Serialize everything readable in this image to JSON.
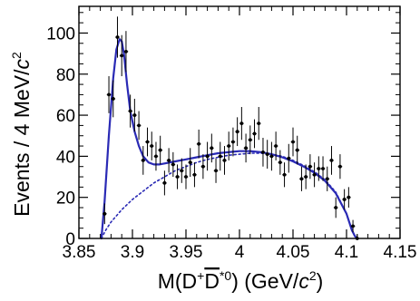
{
  "chart_data": {
    "type": "scatter",
    "xlabel": {
      "prefix": "M(D",
      "sup1": "+",
      "mid": "D",
      "sup2": "*0",
      "suffix": ") (GeV/",
      "unit_c": "c",
      "unit_pow": "2",
      "close": ")"
    },
    "ylabel": {
      "text": "Events / 4 MeV/",
      "unit_c": "c",
      "unit_pow": "2"
    },
    "xlim": [
      3.85,
      4.15
    ],
    "ylim": [
      0,
      113
    ],
    "x_ticks": [
      3.85,
      3.9,
      3.95,
      4.0,
      4.05,
      4.1,
      4.15
    ],
    "x_tick_labels": [
      "3.85",
      "3.9",
      "3.95",
      "4",
      "4.05",
      "4.1",
      "4.15"
    ],
    "y_ticks": [
      0,
      20,
      40,
      60,
      80,
      100
    ],
    "y_tick_labels": [
      "0",
      "20",
      "40",
      "60",
      "80",
      "100"
    ],
    "grid": false,
    "legend": "none",
    "colors": {
      "fit": "#2a2ab5",
      "points": "#000000"
    },
    "series": [
      {
        "kind": "data-points-with-errors",
        "x": [
          3.874,
          3.878,
          3.882,
          3.886,
          3.89,
          3.894,
          3.898,
          3.902,
          3.906,
          3.91,
          3.914,
          3.918,
          3.922,
          3.926,
          3.93,
          3.934,
          3.938,
          3.942,
          3.946,
          3.95,
          3.954,
          3.958,
          3.962,
          3.966,
          3.97,
          3.974,
          3.978,
          3.982,
          3.986,
          3.99,
          3.994,
          3.998,
          4.002,
          4.006,
          4.01,
          4.014,
          4.018,
          4.022,
          4.026,
          4.03,
          4.034,
          4.038,
          4.042,
          4.046,
          4.05,
          4.054,
          4.058,
          4.062,
          4.066,
          4.07,
          4.074,
          4.078,
          4.082,
          4.086,
          4.09,
          4.094,
          4.098,
          4.102,
          4.106,
          4.11
        ],
        "y": [
          12,
          70,
          68,
          98,
          89,
          91,
          62,
          60,
          55,
          38,
          47,
          45,
          40,
          43,
          27,
          38,
          36,
          30,
          33,
          30,
          37,
          31,
          46,
          35,
          40,
          44,
          33,
          40,
          38,
          45,
          47,
          52,
          56,
          44,
          48,
          51,
          56,
          42,
          41,
          40,
          45,
          37,
          31,
          39,
          47,
          43,
          29,
          30,
          35,
          31,
          34,
          34,
          29,
          38,
          15,
          35,
          19,
          20,
          6,
          0
        ],
        "err": [
          5,
          9,
          9,
          10,
          10,
          10,
          8,
          8,
          7,
          7,
          7,
          7,
          7,
          7,
          6,
          6,
          6,
          6,
          6,
          6,
          7,
          6,
          7,
          6,
          7,
          7,
          6,
          7,
          7,
          7,
          7,
          7,
          8,
          7,
          7,
          7,
          8,
          7,
          7,
          7,
          7,
          6,
          6,
          7,
          7,
          7,
          6,
          6,
          6,
          6,
          6,
          6,
          6,
          7,
          5,
          6,
          5,
          5,
          3,
          2
        ]
      },
      {
        "kind": "total-fit",
        "style": "solid",
        "x": [
          3.871,
          3.874,
          3.878,
          3.882,
          3.885,
          3.888,
          3.89,
          3.892,
          3.895,
          3.898,
          3.902,
          3.906,
          3.91,
          3.915,
          3.92,
          3.925,
          3.93,
          3.94,
          3.95,
          3.96,
          3.97,
          3.98,
          3.99,
          4.0,
          4.01,
          4.02,
          4.03,
          4.04,
          4.05,
          4.06,
          4.07,
          4.08,
          4.09,
          4.1,
          4.105,
          4.108,
          4.11
        ],
        "y": [
          0,
          18,
          50,
          78,
          92,
          97,
          96,
          90,
          75,
          62,
          52,
          45,
          40,
          37,
          36,
          36,
          36.5,
          37.5,
          38.5,
          39.5,
          40.5,
          41.5,
          42,
          42.5,
          42.5,
          42,
          41,
          39.5,
          37.5,
          35,
          32,
          28,
          22,
          12,
          4,
          1,
          0
        ]
      },
      {
        "kind": "background",
        "style": "dotted",
        "x": [
          3.871,
          3.875,
          3.88,
          3.89,
          3.9,
          3.91,
          3.92,
          3.93,
          3.94,
          3.95,
          3.96,
          3.97,
          3.98,
          3.99,
          4.0,
          4.01,
          4.02,
          4.03,
          4.04,
          4.05,
          4.06,
          4.07,
          4.08,
          4.09,
          4.1,
          4.105,
          4.108,
          4.11
        ],
        "y": [
          0,
          4,
          8,
          14,
          19,
          23,
          27,
          30,
          33,
          35,
          37,
          38.5,
          39.5,
          40.5,
          41,
          41.5,
          41.5,
          41,
          40,
          38,
          35.5,
          32.5,
          28.5,
          22.5,
          12,
          4,
          1,
          0
        ]
      }
    ]
  }
}
